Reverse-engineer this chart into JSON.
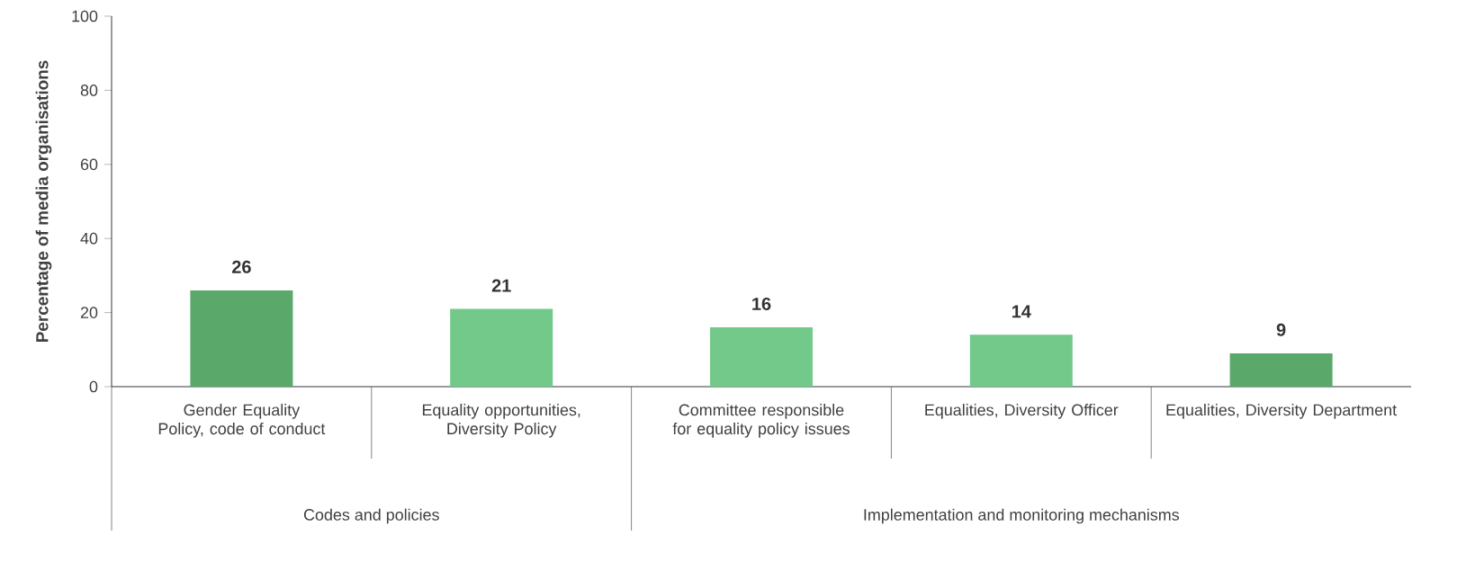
{
  "chart_data": {
    "type": "bar",
    "ylabel": "Percentage of media organisations",
    "categories": [
      "Gender Equality Policy, code of conduct",
      "Equality opportunities, Diversity Policy",
      "Committee responsible for equality policy issues",
      "Equalities, Diversity Officer",
      "Equalities, Diversity Department"
    ],
    "values": [
      26,
      21,
      16,
      14,
      9
    ],
    "colors": [
      "#5aa86a",
      "#72c98a",
      "#72c98a",
      "#72c98a",
      "#5aa86a"
    ],
    "ylim": [
      0,
      100
    ],
    "yticks": [
      0,
      20,
      40,
      60,
      80,
      100
    ],
    "grid": false,
    "data_labels": true,
    "annotations": [
      "Codes and policies",
      "Implementation and monitoring mechanisms"
    ]
  }
}
